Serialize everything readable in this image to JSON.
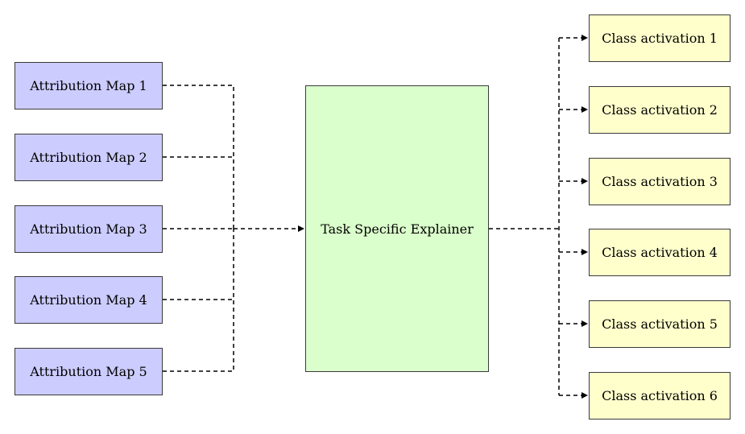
{
  "inputs": [
    "Attribution Map 1",
    "Attribution Map 2",
    "Attribution Map 3",
    "Attribution Map 4",
    "Attribution Map 5"
  ],
  "explainer": "Task Specific Explainer",
  "outputs": [
    "Class activation 1",
    "Class activation 2",
    "Class activation 3",
    "Class activation 4",
    "Class activation 5",
    "Class activation 6"
  ],
  "colors": {
    "input_fill": "#ccccff",
    "explainer_fill": "#dbffcc",
    "output_fill": "#ffffcc",
    "edge": "#000000"
  }
}
